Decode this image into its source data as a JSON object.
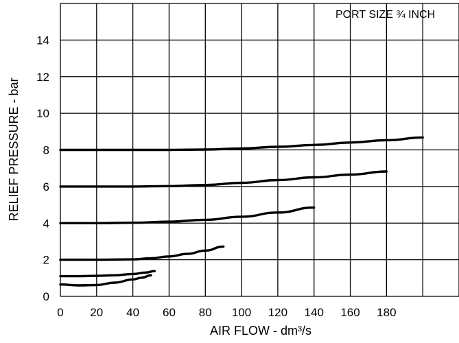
{
  "chart_data": {
    "type": "line",
    "title": "",
    "annotation": "PORT SIZE ¾ INCH",
    "xlabel": "AIR FLOW - dm³/s",
    "ylabel": "RELIEF PRESSURE - bar",
    "xlim": [
      0,
      220
    ],
    "ylim": [
      0,
      16
    ],
    "grid": true,
    "x_tick_labels": [
      "0",
      "20",
      "40",
      "60",
      "80",
      "100",
      "120",
      "140",
      "160",
      "180"
    ],
    "y_tick_labels": [
      "0",
      "2",
      "4",
      "6",
      "8",
      "10",
      "12",
      "14"
    ],
    "series": [
      {
        "x": [
          0,
          10,
          20,
          30,
          40,
          45,
          50
        ],
        "y": [
          0.65,
          0.6,
          0.62,
          0.75,
          0.92,
          1.02,
          1.15
        ]
      },
      {
        "x": [
          0,
          10,
          20,
          30,
          40,
          47,
          52
        ],
        "y": [
          1.1,
          1.1,
          1.12,
          1.15,
          1.22,
          1.3,
          1.38
        ]
      },
      {
        "x": [
          0,
          20,
          40,
          50,
          60,
          70,
          80,
          90
        ],
        "y": [
          2.0,
          2.0,
          2.02,
          2.08,
          2.18,
          2.32,
          2.5,
          2.72
        ]
      },
      {
        "x": [
          0,
          20,
          40,
          60,
          80,
          100,
          120,
          140
        ],
        "y": [
          4.0,
          4.0,
          4.02,
          4.08,
          4.18,
          4.35,
          4.58,
          4.85
        ]
      },
      {
        "x": [
          0,
          20,
          40,
          60,
          80,
          100,
          120,
          140,
          160,
          180
        ],
        "y": [
          6.0,
          6.0,
          6.0,
          6.02,
          6.08,
          6.2,
          6.35,
          6.5,
          6.65,
          6.82
        ]
      },
      {
        "x": [
          0,
          20,
          40,
          60,
          80,
          100,
          120,
          140,
          160,
          180,
          200
        ],
        "y": [
          8.0,
          8.0,
          8.0,
          8.0,
          8.02,
          8.08,
          8.17,
          8.27,
          8.4,
          8.53,
          8.68
        ]
      }
    ]
  }
}
